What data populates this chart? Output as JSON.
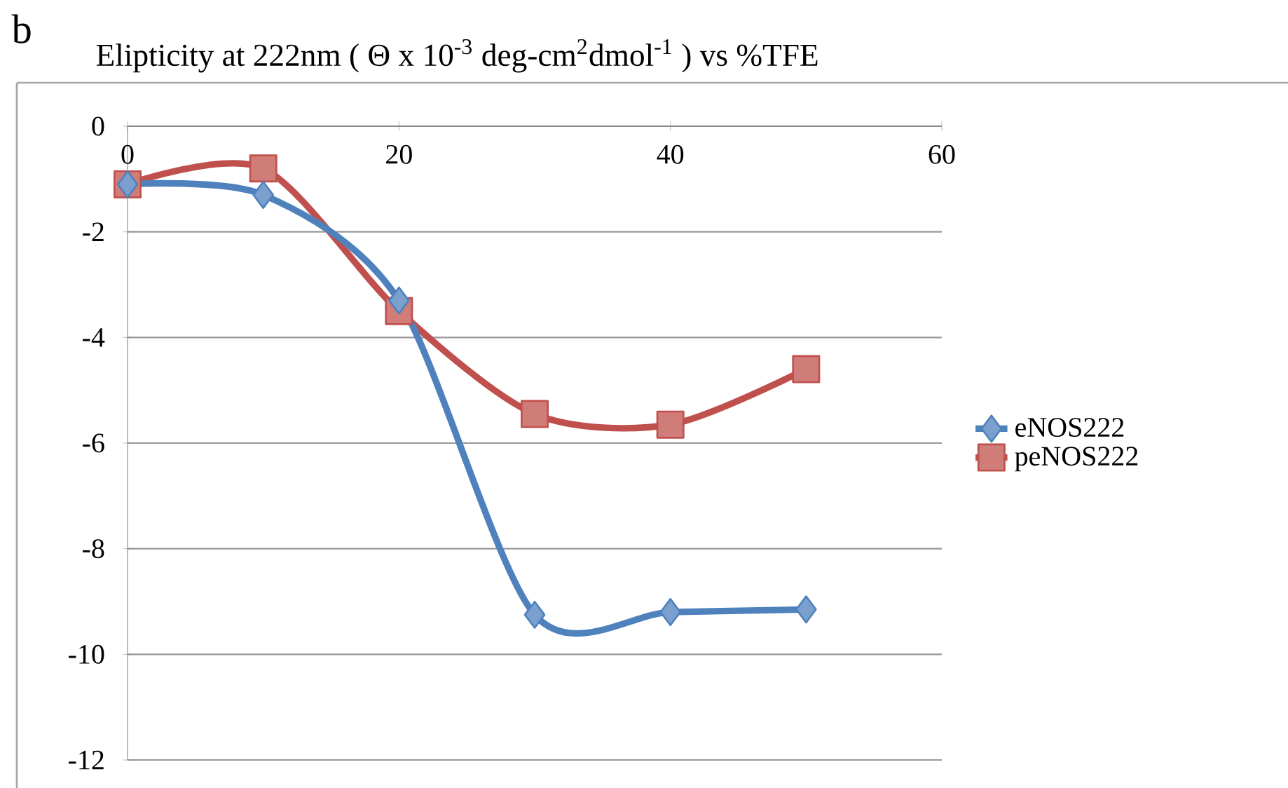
{
  "chart_data": {
    "type": "line",
    "title": "Elipticity at 222nm ( Θ x 10$^{-3}$  deg-cm$^{2}$dmol$^{-1}$ ) vs %TFE",
    "annotations": [
      "b"
    ],
    "x": [
      0,
      10,
      20,
      30,
      40,
      50
    ],
    "series": [
      {
        "name": "eNOS222",
        "color": "#4f81bd",
        "marker": "diamond",
        "values": [
          -1.1,
          -1.3,
          -3.3,
          -9.25,
          -9.2,
          -9.15
        ]
      },
      {
        "name": "peNOS222",
        "color": "#c0504d",
        "marker": "square",
        "values": [
          -1.1,
          -0.8,
          -3.5,
          -5.45,
          -5.65,
          -4.6
        ]
      }
    ],
    "xlim": [
      0,
      60
    ],
    "xticks": [
      0,
      20,
      40,
      60
    ],
    "ylim": [
      -12,
      0
    ],
    "yticks": [
      -12,
      -10,
      -8,
      -6,
      -4,
      -2,
      0
    ],
    "grid": "y",
    "legend": "right"
  }
}
